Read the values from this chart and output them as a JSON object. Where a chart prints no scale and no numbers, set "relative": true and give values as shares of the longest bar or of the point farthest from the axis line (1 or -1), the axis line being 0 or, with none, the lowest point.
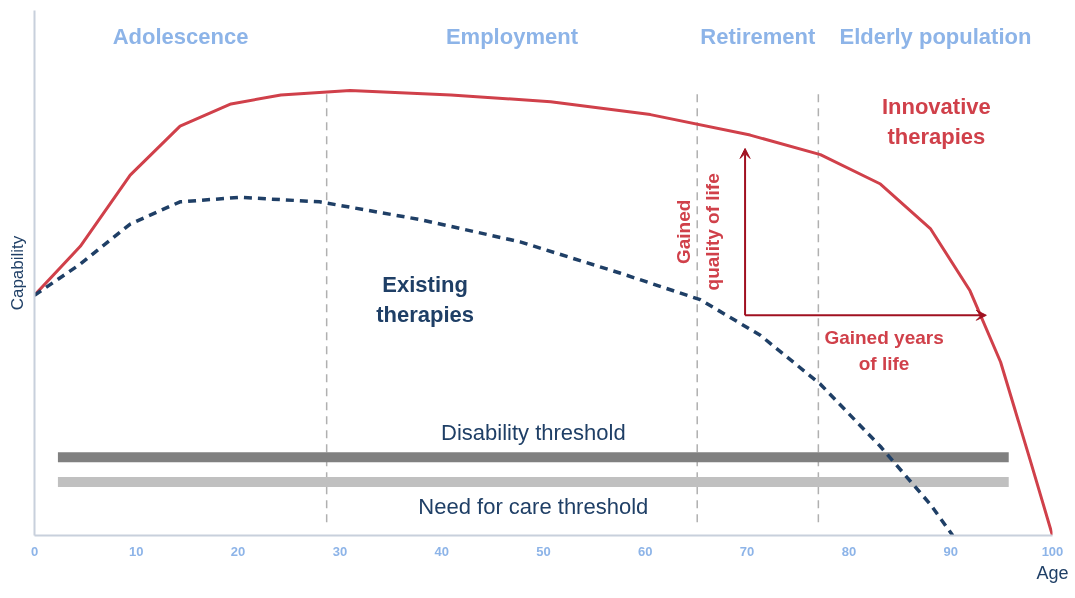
{
  "chart_data": {
    "type": "line",
    "relative": true,
    "xlabel": "Age",
    "ylabel": "Capability",
    "xlim": [
      0,
      100
    ],
    "xticks": [
      0,
      10,
      20,
      30,
      40,
      50,
      60,
      70,
      80,
      90,
      100
    ],
    "grid": false,
    "series": [
      {
        "name": "Innovative therapies",
        "color": "#d0404a",
        "line_style": "solid",
        "x": [
          0,
          4.5,
          9.4,
          14.3,
          19.3,
          24.2,
          31,
          40.9,
          50.7,
          60.5,
          70.3,
          77.2,
          83.1,
          88,
          91.9,
          94.9,
          97.8,
          100
        ],
        "values": [
          0.54,
          0.65,
          0.81,
          0.92,
          0.97,
          0.99,
          1.0,
          0.99,
          0.975,
          0.946,
          0.9,
          0.856,
          0.79,
          0.69,
          0.55,
          0.39,
          0.17,
          0
        ]
      },
      {
        "name": "Existing therapies",
        "color": "#1f3f66",
        "line_style": "dashed",
        "x": [
          0,
          4.5,
          9.4,
          14.3,
          20.2,
          28,
          37.9,
          47.7,
          57.5,
          65.4,
          71.3,
          77.2,
          83.1,
          88,
          90.2
        ],
        "values": [
          0.54,
          0.61,
          0.7,
          0.75,
          0.76,
          0.75,
          0.71,
          0.66,
          0.59,
          0.53,
          0.45,
          0.34,
          0.2,
          0.07,
          0
        ]
      }
    ],
    "ref_lines": [
      {
        "axis": "x",
        "value": 28.7,
        "color": "#b0b0b0",
        "line_style": "dashed"
      },
      {
        "axis": "x",
        "value": 65.1,
        "color": "#b0b0b0",
        "line_style": "dashed"
      },
      {
        "axis": "x",
        "value": 77,
        "color": "#b0b0b0",
        "line_style": "dashed"
      },
      {
        "axis": "y",
        "value": 0.176,
        "label": "Disability threshold",
        "color": "#808080",
        "line_style": "solid"
      },
      {
        "axis": "y",
        "value": 0.12,
        "label": "Need for care threshold",
        "color": "#c0c0c0",
        "line_style": "solid"
      }
    ],
    "annotations": [
      "Adolescence",
      "Employment",
      "Retirement",
      "Elderly population",
      "Gained quality of life",
      "Gained years of life"
    ]
  }
}
